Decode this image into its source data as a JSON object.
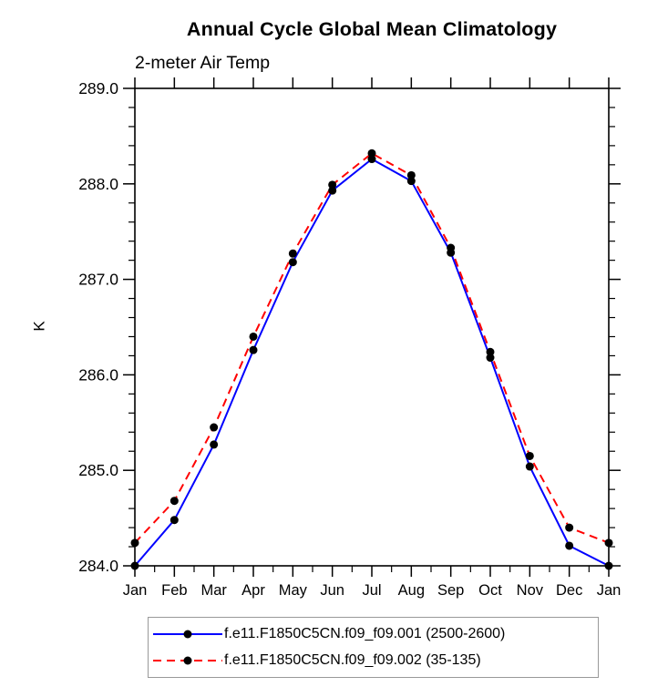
{
  "chart_data": {
    "type": "line",
    "title": "Annual Cycle Global Mean Climatology",
    "subtitle": "2-meter Air Temp",
    "ylabel": "K",
    "xlabel": "",
    "categories": [
      "Jan",
      "Feb",
      "Mar",
      "Apr",
      "May",
      "Jun",
      "Jul",
      "Aug",
      "Sep",
      "Oct",
      "Nov",
      "Dec",
      "Jan"
    ],
    "y_axis": {
      "min": 284.0,
      "max": 289.0,
      "major_step": 1.0,
      "minor_step": 0.2,
      "tick_labels": [
        "284.0",
        "285.0",
        "286.0",
        "287.0",
        "288.0",
        "289.0"
      ]
    },
    "grid": false,
    "legend_position": "bottom",
    "series": [
      {
        "name": "f.e11.F1850C5CN.f09_f09.001 (2500-2600)",
        "color": "#0000ff",
        "dash": "solid",
        "marker": "circle",
        "marker_color": "#000000",
        "values": [
          284.0,
          284.48,
          285.27,
          286.26,
          287.18,
          287.93,
          288.26,
          288.03,
          287.28,
          286.18,
          285.04,
          284.21,
          284.0
        ]
      },
      {
        "name": "f.e11.F1850C5CN.f09_f09.002 (35-135)",
        "color": "#ff0000",
        "dash": "dashed",
        "marker": "circle",
        "marker_color": "#000000",
        "values": [
          284.24,
          284.68,
          285.45,
          286.4,
          287.27,
          287.99,
          288.32,
          288.09,
          287.33,
          286.24,
          285.15,
          284.4,
          284.24
        ]
      }
    ]
  },
  "colors": {
    "axis": "#000000",
    "legend_border": "#999999",
    "background": "#ffffff"
  }
}
